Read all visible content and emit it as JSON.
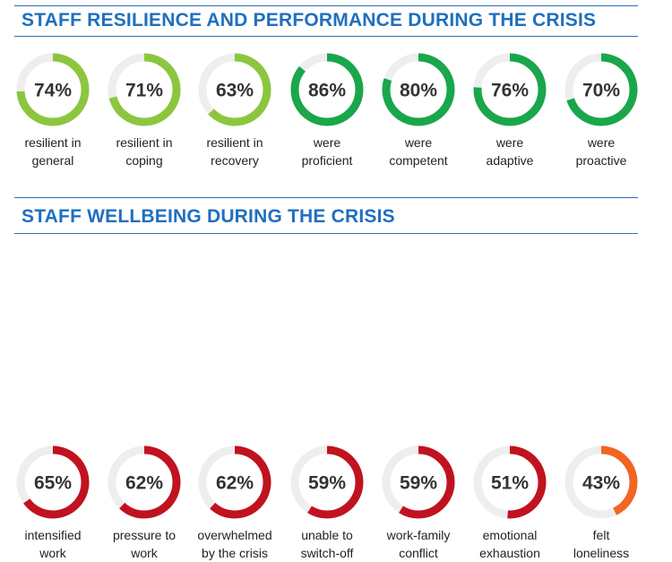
{
  "sections": [
    {
      "title": "STAFF RESILIENCE AND PERFORMANCE DURING THE CRISIS",
      "items": [
        {
          "value": 74,
          "display": "74%",
          "label": [
            "resilient in",
            "general"
          ],
          "color": "#8cc63f"
        },
        {
          "value": 71,
          "display": "71%",
          "label": [
            "resilient in",
            "coping"
          ],
          "color": "#8cc63f"
        },
        {
          "value": 63,
          "display": "63%",
          "label": [
            "resilient in",
            "recovery"
          ],
          "color": "#8cc63f"
        },
        {
          "value": 86,
          "display": "86%",
          "label": [
            "were",
            "proficient"
          ],
          "color": "#1aa64b"
        },
        {
          "value": 80,
          "display": "80%",
          "label": [
            "were",
            "competent"
          ],
          "color": "#1aa64b"
        },
        {
          "value": 76,
          "display": "76%",
          "label": [
            "were",
            "adaptive"
          ],
          "color": "#1aa64b"
        },
        {
          "value": 70,
          "display": "70%",
          "label": [
            "were",
            "proactive"
          ],
          "color": "#1aa64b"
        }
      ]
    },
    {
      "title": "STAFF WELLBEING DURING THE CRISIS",
      "items": [
        {
          "value": 65,
          "display": "65%",
          "label": [
            "intensified",
            "work"
          ],
          "color": "#c1121f"
        },
        {
          "value": 62,
          "display": "62%",
          "label": [
            "pressure to",
            "work"
          ],
          "color": "#c1121f"
        },
        {
          "value": 62,
          "display": "62%",
          "label": [
            "overwhelmed",
            "by the crisis"
          ],
          "color": "#c1121f"
        },
        {
          "value": 59,
          "display": "59%",
          "label": [
            "unable to",
            "switch-off"
          ],
          "color": "#c1121f"
        },
        {
          "value": 59,
          "display": "59%",
          "label": [
            "work-family",
            "conflict"
          ],
          "color": "#c1121f"
        },
        {
          "value": 51,
          "display": "51%",
          "label": [
            "emotional",
            "exhaustion"
          ],
          "color": "#c1121f"
        },
        {
          "value": 43,
          "display": "43%",
          "label": [
            "felt",
            "loneliness"
          ],
          "color": "#f26522"
        }
      ]
    }
  ],
  "chart_data": {
    "type": "donut-gauge",
    "track_color": "#eeeeee",
    "series": [
      {
        "name": "STAFF RESILIENCE AND PERFORMANCE DURING THE CRISIS",
        "categories": [
          "resilient in general",
          "resilient in coping",
          "resilient in recovery",
          "were proficient",
          "were competent",
          "were adaptive",
          "were proactive"
        ],
        "values": [
          74,
          71,
          63,
          86,
          80,
          76,
          70
        ]
      },
      {
        "name": "STAFF WELLBEING DURING THE CRISIS",
        "categories": [
          "intensified work",
          "pressure to work",
          "overwhelmed by the crisis",
          "unable to switch-off",
          "work-family conflict",
          "emotional exhaustion",
          "felt loneliness"
        ],
        "values": [
          65,
          62,
          62,
          59,
          59,
          51,
          43
        ]
      }
    ]
  }
}
